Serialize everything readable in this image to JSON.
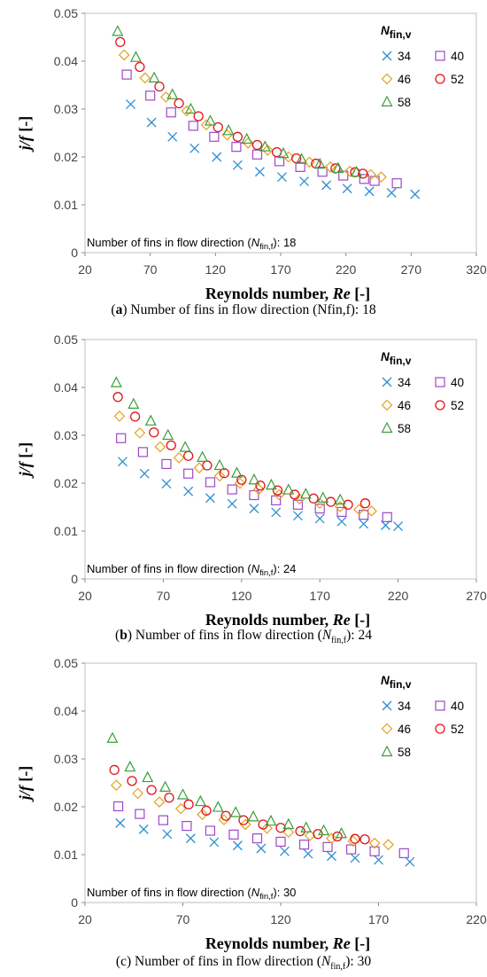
{
  "colors": {
    "s34": "#2E8FD0",
    "s40": "#9E48C8",
    "s46": "#E2A21E",
    "s52": "#E0141A",
    "s58": "#3A9E3A"
  },
  "chart_data": [
    {
      "type": "scatter",
      "xlabel": "Reynolds number, ",
      "xlabel_italic": "Re",
      "xlabel_suffix": " [-]",
      "ylabel": "j/f [-]",
      "xlim": [
        20,
        320
      ],
      "xticks": [
        20,
        70,
        120,
        170,
        220,
        270,
        320
      ],
      "ylim": [
        0,
        0.05
      ],
      "yticks": [
        0,
        0.01,
        0.02,
        0.03,
        0.04,
        0.05
      ],
      "legend_title": "N",
      "legend_title_sub": "fin,v",
      "legend_placement": "top-right",
      "annotation": {
        "prefix": "Number of fins in flow direction (",
        "italic": "N",
        "sub": "fin,f",
        "suffix": "): 18"
      },
      "caption": {
        "label": "a",
        "text": " Number of fins in flow direction (Nfin,f): 18"
      },
      "series": [
        {
          "name": "34",
          "marker": "x",
          "color": "#2E8FD0",
          "x": [
            55,
            71,
            87,
            104,
            121,
            137,
            154,
            171,
            188,
            205,
            221,
            238,
            255,
            273
          ],
          "y": [
            0.031,
            0.0272,
            0.0242,
            0.0218,
            0.02,
            0.0183,
            0.0169,
            0.0158,
            0.0149,
            0.0141,
            0.0134,
            0.0128,
            0.0125,
            0.0122
          ]
        },
        {
          "name": "40",
          "marker": "square",
          "color": "#9E48C8",
          "x": [
            52,
            70,
            86,
            103,
            119,
            136,
            152,
            169,
            185,
            202,
            218,
            234,
            242,
            259
          ],
          "y": [
            0.0372,
            0.0328,
            0.0293,
            0.0265,
            0.0242,
            0.0221,
            0.0205,
            0.0191,
            0.0179,
            0.0169,
            0.0161,
            0.0154,
            0.015,
            0.0145
          ]
        },
        {
          "name": "46",
          "marker": "diamond",
          "color": "#E2A21E",
          "x": [
            50,
            66,
            82,
            98,
            113,
            129,
            145,
            160,
            176,
            192,
            208,
            223,
            239,
            247
          ],
          "y": [
            0.0413,
            0.0365,
            0.0325,
            0.0296,
            0.0267,
            0.0246,
            0.0229,
            0.0214,
            0.02,
            0.0189,
            0.0179,
            0.017,
            0.0163,
            0.0158
          ]
        },
        {
          "name": "52",
          "marker": "circle",
          "color": "#E0141A",
          "x": [
            47,
            62,
            77,
            92,
            107,
            122,
            137,
            152,
            167,
            182,
            197,
            212,
            227,
            233
          ],
          "y": [
            0.044,
            0.0388,
            0.0347,
            0.0312,
            0.0285,
            0.0262,
            0.0242,
            0.0225,
            0.021,
            0.0197,
            0.0186,
            0.0176,
            0.0168,
            0.0165
          ]
        },
        {
          "name": "58",
          "marker": "triangle",
          "color": "#3A9E3A",
          "x": [
            45,
            59,
            73,
            87,
            101,
            116,
            130,
            144,
            158,
            172,
            186,
            200,
            214,
            228
          ],
          "y": [
            0.0462,
            0.0408,
            0.0365,
            0.033,
            0.03,
            0.0275,
            0.0255,
            0.0237,
            0.0221,
            0.0207,
            0.0195,
            0.0185,
            0.0176,
            0.0168
          ]
        }
      ]
    },
    {
      "type": "scatter",
      "xlabel": "Reynolds number, ",
      "xlabel_italic": "Re",
      "xlabel_suffix": " [-]",
      "ylabel": "j/f [-]",
      "xlim": [
        20,
        270
      ],
      "xticks": [
        20,
        70,
        120,
        170,
        220,
        270
      ],
      "ylim": [
        0,
        0.05
      ],
      "yticks": [
        0,
        0.01,
        0.02,
        0.03,
        0.04,
        0.05
      ],
      "legend_title": "N",
      "legend_title_sub": "fin,v",
      "legend_placement": "top-right",
      "annotation": {
        "prefix": "Number of fins in flow direction (",
        "italic": "N",
        "sub": "fin,f",
        "suffix": "): 24"
      },
      "caption": {
        "label": "b",
        "text": " Number of fins in flow direction (",
        "italic": "N",
        "sub": "fin,f",
        "suffix": "): 24"
      },
      "series": [
        {
          "name": "34",
          "marker": "x",
          "color": "#2E8FD0",
          "x": [
            44,
            58,
            72,
            86,
            100,
            114,
            128,
            142,
            156,
            170,
            184,
            198,
            212,
            220
          ],
          "y": [
            0.0245,
            0.022,
            0.0199,
            0.0183,
            0.0169,
            0.0157,
            0.0147,
            0.0139,
            0.0132,
            0.0126,
            0.012,
            0.0115,
            0.0112,
            0.011
          ]
        },
        {
          "name": "40",
          "marker": "square",
          "color": "#9E48C8",
          "x": [
            43,
            57,
            72,
            86,
            100,
            114,
            128,
            142,
            156,
            170,
            184,
            198,
            213
          ],
          "y": [
            0.0294,
            0.0265,
            0.024,
            0.022,
            0.0202,
            0.0187,
            0.0175,
            0.0164,
            0.0155,
            0.0147,
            0.014,
            0.0134,
            0.0129
          ]
        },
        {
          "name": "46",
          "marker": "diamond",
          "color": "#E2A21E",
          "x": [
            42,
            55,
            68,
            80,
            93,
            106,
            119,
            131,
            144,
            157,
            170,
            183,
            195,
            203
          ],
          "y": [
            0.034,
            0.0305,
            0.0276,
            0.0253,
            0.0232,
            0.0215,
            0.02,
            0.0187,
            0.0176,
            0.0167,
            0.0158,
            0.0151,
            0.0145,
            0.0142
          ]
        },
        {
          "name": "52",
          "marker": "circle",
          "color": "#E0141A",
          "x": [
            41,
            52,
            64,
            75,
            86,
            98,
            109,
            120,
            132,
            143,
            154,
            166,
            177,
            188,
            199
          ],
          "y": [
            0.038,
            0.0339,
            0.0306,
            0.0279,
            0.0257,
            0.0237,
            0.0221,
            0.0207,
            0.0195,
            0.0185,
            0.0176,
            0.0168,
            0.0161,
            0.0155,
            0.0158
          ]
        },
        {
          "name": "58",
          "marker": "triangle",
          "color": "#3A9E3A",
          "x": [
            40,
            51,
            62,
            73,
            84,
            95,
            106,
            117,
            128,
            139,
            150,
            161,
            172,
            183
          ],
          "y": [
            0.041,
            0.0365,
            0.033,
            0.03,
            0.0275,
            0.0254,
            0.0237,
            0.0221,
            0.0207,
            0.0196,
            0.0186,
            0.0177,
            0.0169,
            0.0165
          ]
        }
      ]
    },
    {
      "type": "scatter",
      "xlabel": "Reynolds number, ",
      "xlabel_italic": "Re",
      "xlabel_suffix": " [-]",
      "ylabel": "j/f [-]",
      "xlim": [
        20,
        220
      ],
      "xticks": [
        20,
        70,
        120,
        170,
        220
      ],
      "ylim": [
        0,
        0.05
      ],
      "yticks": [
        0,
        0.01,
        0.02,
        0.03,
        0.04,
        0.05
      ],
      "legend_title": "N",
      "legend_title_sub": "fin,v",
      "legend_placement": "top-right",
      "annotation": {
        "prefix": "Number of fins in flow direction (",
        "italic": "N",
        "sub": "fin,f",
        "suffix": "): 30"
      },
      "caption": {
        "label": "c",
        "text": " Number of fins in flow direction (",
        "italic": "N",
        "sub": "fin,f",
        "suffix": "): 30",
        "plain_label": true
      },
      "series": [
        {
          "name": "34",
          "marker": "x",
          "color": "#2E8FD0",
          "x": [
            38,
            50,
            62,
            74,
            86,
            98,
            110,
            122,
            134,
            146,
            158,
            170,
            186
          ],
          "y": [
            0.0166,
            0.0153,
            0.0143,
            0.0134,
            0.0126,
            0.0119,
            0.0113,
            0.0107,
            0.0102,
            0.0097,
            0.0093,
            0.0089,
            0.0085
          ]
        },
        {
          "name": "40",
          "marker": "square",
          "color": "#9E48C8",
          "x": [
            37,
            48,
            60,
            72,
            84,
            96,
            108,
            120,
            132,
            144,
            156,
            168,
            183
          ],
          "y": [
            0.0201,
            0.0185,
            0.0172,
            0.016,
            0.015,
            0.0142,
            0.0134,
            0.0127,
            0.0121,
            0.0116,
            0.0111,
            0.0107,
            0.0103
          ]
        },
        {
          "name": "46",
          "marker": "diamond",
          "color": "#E2A21E",
          "x": [
            36,
            47,
            58,
            69,
            80,
            91,
            102,
            113,
            124,
            135,
            146,
            157,
            168,
            175
          ],
          "y": [
            0.0245,
            0.0228,
            0.021,
            0.0196,
            0.0184,
            0.0173,
            0.0163,
            0.0155,
            0.0147,
            0.014,
            0.0134,
            0.0128,
            0.0124,
            0.0121
          ]
        },
        {
          "name": "52",
          "marker": "circle",
          "color": "#E0141A",
          "x": [
            35,
            44,
            54,
            63,
            73,
            82,
            92,
            101,
            111,
            120,
            130,
            139,
            149,
            158,
            163
          ],
          "y": [
            0.0277,
            0.0254,
            0.0235,
            0.0219,
            0.0205,
            0.0192,
            0.0181,
            0.0172,
            0.0163,
            0.0156,
            0.0149,
            0.0143,
            0.0138,
            0.0133,
            0.0132
          ]
        },
        {
          "name": "58",
          "marker": "triangle",
          "color": "#3A9E3A",
          "x": [
            34,
            43,
            52,
            61,
            70,
            79,
            88,
            97,
            106,
            115,
            124,
            133,
            142,
            151
          ],
          "y": [
            0.0343,
            0.0283,
            0.0261,
            0.0241,
            0.0225,
            0.0211,
            0.0199,
            0.0188,
            0.0179,
            0.017,
            0.0163,
            0.0156,
            0.015,
            0.0144
          ]
        }
      ]
    }
  ]
}
